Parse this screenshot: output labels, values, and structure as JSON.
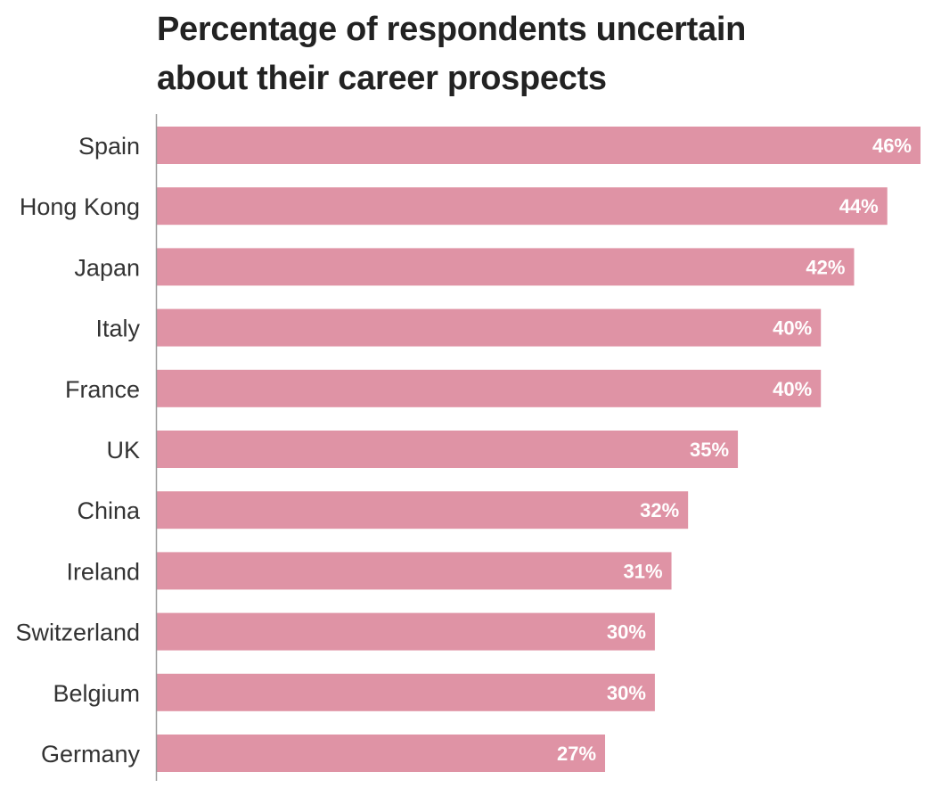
{
  "chart_data": {
    "type": "bar",
    "orientation": "horizontal",
    "title": "Percentage of respondents uncertain about their career prospects",
    "title_lines": [
      "Percentage of respondents uncertain",
      "about their career prospects"
    ],
    "xlabel": "",
    "ylabel": "",
    "categories": [
      "Spain",
      "Hong Kong",
      "Japan",
      "Italy",
      "France",
      "UK",
      "China",
      "Ireland",
      "Switzerland",
      "Belgium",
      "Germany"
    ],
    "values": [
      46,
      44,
      42,
      40,
      40,
      35,
      32,
      31,
      30,
      30,
      27
    ],
    "value_labels": [
      "46%",
      "44%",
      "42%",
      "40%",
      "40%",
      "35%",
      "32%",
      "31%",
      "30%",
      "30%",
      "27%"
    ],
    "unit": "%",
    "xlim": [
      0,
      46
    ],
    "grid": false,
    "legend": "none",
    "bar_color": "#df93a5",
    "label_color": "#ffffff"
  }
}
